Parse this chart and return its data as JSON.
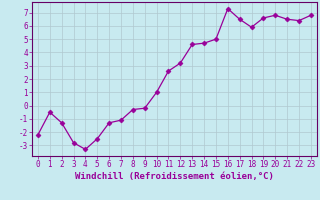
{
  "x": [
    0,
    1,
    2,
    3,
    4,
    5,
    6,
    7,
    8,
    9,
    10,
    11,
    12,
    13,
    14,
    15,
    16,
    17,
    18,
    19,
    20,
    21,
    22,
    23
  ],
  "y": [
    -2.2,
    -0.5,
    -1.3,
    -2.8,
    -3.3,
    -2.5,
    -1.3,
    -1.1,
    -0.3,
    -0.2,
    1.0,
    2.6,
    3.2,
    4.6,
    4.7,
    5.0,
    7.3,
    6.5,
    5.9,
    6.6,
    6.8,
    6.5,
    6.4,
    6.8
  ],
  "line_color": "#990099",
  "marker": "D",
  "marker_size": 2.5,
  "bg_color": "#c8eaf0",
  "grid_color": "#b0c8d0",
  "xlabel": "Windchill (Refroidissement éolien,°C)",
  "xlim": [
    -0.5,
    23.5
  ],
  "ylim": [
    -3.8,
    7.8
  ],
  "yticks": [
    -3,
    -2,
    -1,
    0,
    1,
    2,
    3,
    4,
    5,
    6,
    7
  ],
  "xticks": [
    0,
    1,
    2,
    3,
    4,
    5,
    6,
    7,
    8,
    9,
    10,
    11,
    12,
    13,
    14,
    15,
    16,
    17,
    18,
    19,
    20,
    21,
    22,
    23
  ],
  "tick_label_fontsize": 5.5,
  "xlabel_fontsize": 6.5,
  "tick_color": "#990099",
  "spine_color": "#660066",
  "label_color": "#990099"
}
